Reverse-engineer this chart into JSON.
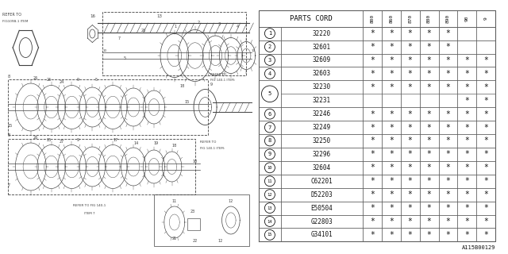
{
  "bg_color": "#ffffff",
  "watermark": "A115B00129",
  "table_header": "PARTS CORD",
  "col_headers": [
    "800",
    "860",
    "870",
    "880",
    "890",
    "90",
    "9"
  ],
  "rows": [
    {
      "num": 1,
      "code": "32220",
      "marks": [
        1,
        1,
        1,
        1,
        1,
        0,
        0
      ]
    },
    {
      "num": 2,
      "code": "32601",
      "marks": [
        1,
        1,
        1,
        1,
        1,
        0,
        0
      ]
    },
    {
      "num": 3,
      "code": "32609",
      "marks": [
        1,
        1,
        1,
        1,
        1,
        1,
        1
      ]
    },
    {
      "num": 4,
      "code": "32603",
      "marks": [
        1,
        1,
        1,
        1,
        1,
        1,
        1
      ]
    },
    {
      "num": 5,
      "code": "32230",
      "marks": [
        1,
        1,
        1,
        1,
        1,
        1,
        1
      ],
      "sub_code": "32231",
      "sub_marks": [
        0,
        0,
        0,
        0,
        0,
        1,
        1
      ]
    },
    {
      "num": 6,
      "code": "32246",
      "marks": [
        1,
        1,
        1,
        1,
        1,
        1,
        1
      ]
    },
    {
      "num": 7,
      "code": "32249",
      "marks": [
        1,
        1,
        1,
        1,
        1,
        1,
        1
      ]
    },
    {
      "num": 8,
      "code": "32250",
      "marks": [
        1,
        1,
        1,
        1,
        1,
        1,
        1
      ]
    },
    {
      "num": 9,
      "code": "32296",
      "marks": [
        1,
        1,
        1,
        1,
        1,
        1,
        1
      ]
    },
    {
      "num": 10,
      "code": "32604",
      "marks": [
        1,
        1,
        1,
        1,
        1,
        1,
        1
      ]
    },
    {
      "num": 11,
      "code": "C62201",
      "marks": [
        1,
        1,
        1,
        1,
        1,
        1,
        1
      ]
    },
    {
      "num": 12,
      "code": "D52203",
      "marks": [
        1,
        1,
        1,
        1,
        1,
        1,
        1
      ]
    },
    {
      "num": 13,
      "code": "E50504",
      "marks": [
        1,
        1,
        1,
        1,
        1,
        1,
        1
      ]
    },
    {
      "num": 14,
      "code": "G22803",
      "marks": [
        1,
        1,
        1,
        1,
        1,
        1,
        1
      ]
    },
    {
      "num": 15,
      "code": "G34101",
      "marks": [
        1,
        1,
        1,
        1,
        1,
        1,
        1
      ]
    }
  ],
  "lc": "#404040",
  "tc": "#606060"
}
